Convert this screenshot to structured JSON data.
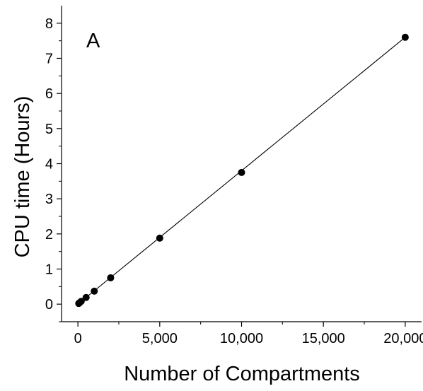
{
  "chart_data": {
    "type": "scatter",
    "panel_label": "A",
    "xlabel": "Number of Compartments",
    "ylabel": "CPU time (Hours)",
    "xlim": [
      -1000,
      21000
    ],
    "ylim": [
      -0.5,
      8.5
    ],
    "x_ticks": [
      0,
      5000,
      10000,
      15000,
      20000
    ],
    "x_tick_labels": [
      "0",
      "5,000",
      "10,000",
      "15,000",
      "20,000"
    ],
    "y_ticks": [
      0,
      1,
      2,
      3,
      4,
      5,
      6,
      7,
      8
    ],
    "y_tick_labels": [
      "0",
      "1",
      "2",
      "3",
      "4",
      "5",
      "6",
      "7",
      "8"
    ],
    "grid": false,
    "points": [
      {
        "x": 50,
        "y": 0.02
      },
      {
        "x": 100,
        "y": 0.04
      },
      {
        "x": 200,
        "y": 0.08
      },
      {
        "x": 500,
        "y": 0.19
      },
      {
        "x": 1000,
        "y": 0.37
      },
      {
        "x": 2000,
        "y": 0.75
      },
      {
        "x": 5000,
        "y": 1.88
      },
      {
        "x": 10000,
        "y": 3.75
      },
      {
        "x": 20000,
        "y": 7.6
      }
    ],
    "fit_line": {
      "x": [
        0,
        20000
      ],
      "y": [
        0.0,
        7.6
      ]
    },
    "colors": {
      "marker": "#000000",
      "line": "#000000",
      "axis": "#000000"
    }
  }
}
